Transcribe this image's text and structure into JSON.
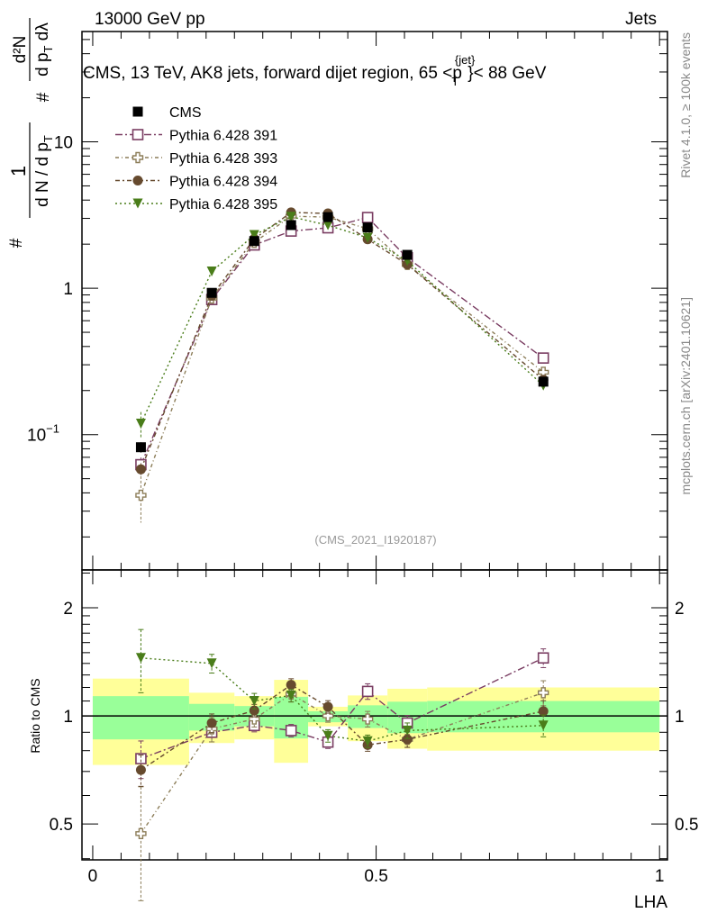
{
  "header": {
    "left": "13000 GeV pp",
    "right": "Jets"
  },
  "side_labels": {
    "rivet": "Rivet 4.1.0, ≥ 100k events",
    "mcplots": "mcplots.cern.ch [arXiv:2401.10621]"
  },
  "chart_data": [
    {
      "type": "scatter",
      "title": "CMS, 13 TeV, AK8 jets, forward dijet region, 65 < p_T^{jet} < 88 GeV",
      "title_parts": {
        "main": "CMS, 13 TeV, AK8 jets, forward dijet region, 65 <p",
        "sup": "{jet}",
        "sub": "T",
        "tail": "}< 88 GeV"
      },
      "analysis_label": "(CMS_2021_I1920187)",
      "ylabel": "1 / (dN / dp_T) · d²N / (dp_T dλ)",
      "ylabel_parts": {
        "num1": "1",
        "den1": "d N / d p",
        "den1_sub": "T",
        "num2": "d²N",
        "den2": "d p",
        "den2_sub": "T",
        "den2_tail": " dλ",
        "hash": "#"
      },
      "yscale": "log",
      "ylim": [
        0.0119,
        56.7
      ],
      "xlim": [
        -0.019,
        1.014
      ],
      "yticks": [
        {
          "value": 10,
          "label": "10"
        },
        {
          "value": 1,
          "label": "1"
        },
        {
          "value": 0.1,
          "label": "10",
          "sup": "−1"
        }
      ],
      "legend_position": "top-left",
      "x": [
        0.085,
        0.21,
        0.285,
        0.35,
        0.415,
        0.485,
        0.555,
        0.795
      ],
      "bin_edges": [
        0,
        0.17,
        0.25,
        0.32,
        0.38,
        0.45,
        0.52,
        0.59,
        1.0
      ],
      "data": {
        "name": "CMS",
        "color": "#000000",
        "values": [
          0.082,
          0.93,
          2.1,
          2.7,
          3.06,
          2.6,
          1.69,
          0.23
        ],
        "rel_err": [
          0.08,
          0.05,
          0.04,
          0.05,
          0.03,
          0.04,
          0.04,
          0.08
        ]
      },
      "series": [
        {
          "name": "Pythia 6.428 391",
          "color": "#7a3d62",
          "marker": "open-square",
          "dash": "8 3 2 3",
          "ratio": [
            0.76,
            0.9,
            0.94,
            0.91,
            0.845,
            1.17,
            0.955,
            1.45
          ],
          "rel_err": [
            0.12,
            0.06,
            0.04,
            0.04,
            0.04,
            0.05,
            0.05,
            0.06
          ]
        },
        {
          "name": "Pythia 6.428 393",
          "color": "#8c7d58",
          "marker": "open-cross",
          "dash": "4 3 1 3",
          "ratio": [
            0.47,
            0.92,
            0.98,
            1.15,
            1.0,
            0.98,
            0.86,
            1.16
          ],
          "rel_err": [
            0.35,
            0.08,
            0.05,
            0.05,
            0.04,
            0.05,
            0.05,
            0.08
          ]
        },
        {
          "name": "Pythia 6.428 394",
          "color": "#664a2e",
          "marker": "circle",
          "dash": "5 3 2 3",
          "ratio": [
            0.707,
            0.955,
            1.035,
            1.22,
            1.06,
            0.83,
            0.86,
            1.03
          ],
          "rel_err": [
            0.1,
            0.06,
            0.04,
            0.04,
            0.04,
            0.04,
            0.05,
            0.07
          ]
        },
        {
          "name": "Pythia 6.428 395",
          "color": "#4a7d1a",
          "marker": "down-triangle",
          "dash": "2 3 2 3",
          "ratio": [
            1.45,
            1.4,
            1.1,
            1.14,
            0.88,
            0.85,
            0.91,
            0.94
          ],
          "rel_err": [
            0.2,
            0.06,
            0.05,
            0.04,
            0.04,
            0.04,
            0.05,
            0.07
          ]
        }
      ]
    },
    {
      "type": "line",
      "ylabel": "Ratio to CMS",
      "xlabel": "LHA",
      "yscale": "log",
      "ylim": [
        0.397,
        2.55
      ],
      "xticks": [
        {
          "value": 0,
          "label": "0"
        },
        {
          "value": 0.5,
          "label": "0.5"
        },
        {
          "value": 1,
          "label": "1"
        }
      ],
      "yticks": [
        {
          "value": 2,
          "label": "2"
        },
        {
          "value": 1,
          "label": "1"
        },
        {
          "value": 0.5,
          "label": "0.5"
        }
      ],
      "band_total": {
        "color": "#ffff99",
        "lo": [
          0.73,
          0.84,
          0.86,
          0.74,
          0.935,
          0.85,
          0.81,
          0.8
        ],
        "hi": [
          1.27,
          1.16,
          1.135,
          1.26,
          1.06,
          1.14,
          1.19,
          1.2
        ]
      },
      "band_stat": {
        "color": "#99ff99",
        "lo": [
          0.86,
          0.91,
          0.935,
          0.865,
          0.96,
          0.925,
          0.895,
          0.9
        ],
        "hi": [
          1.135,
          1.08,
          1.065,
          1.13,
          1.03,
          1.07,
          1.095,
          1.1
        ]
      }
    }
  ]
}
